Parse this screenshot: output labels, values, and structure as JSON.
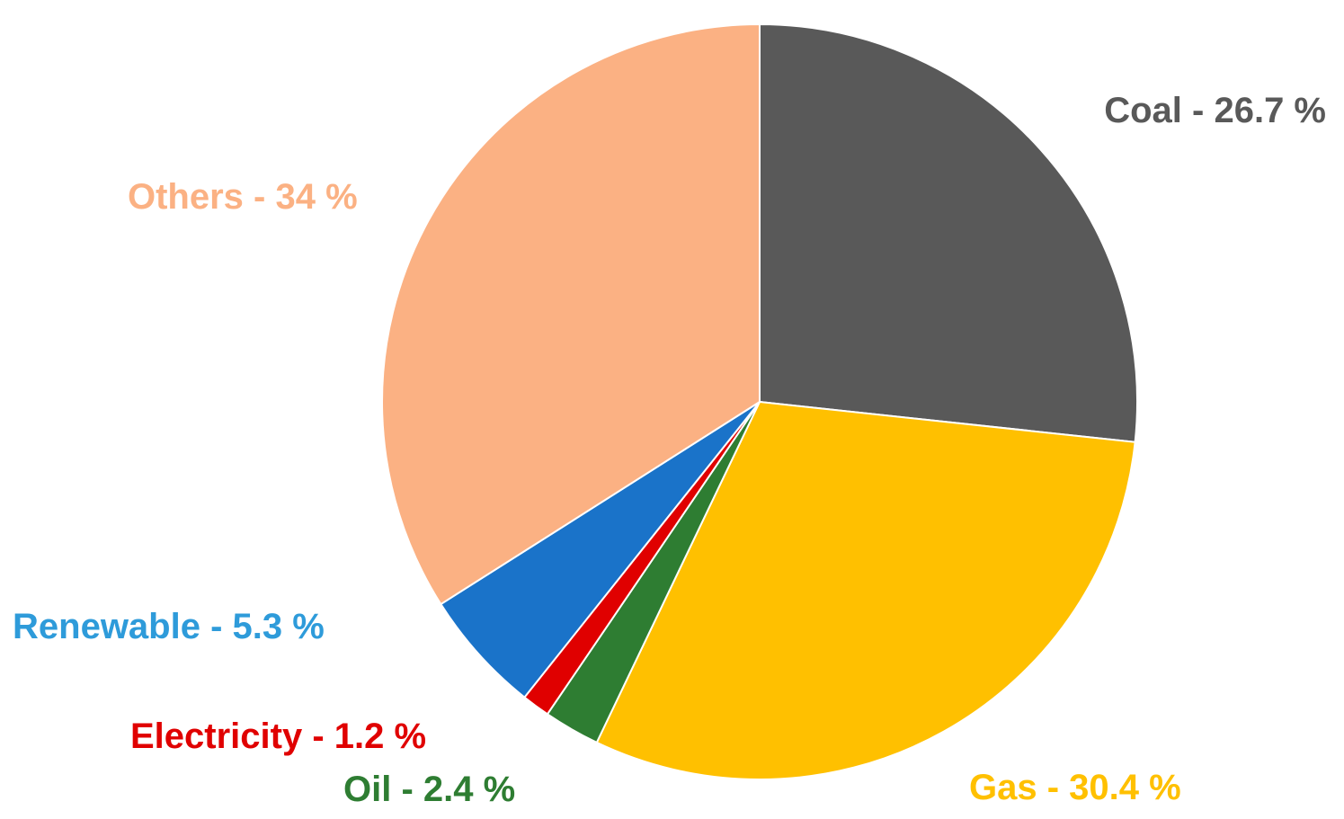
{
  "chart_data": {
    "type": "pie",
    "title": "",
    "slices": [
      {
        "label": "Coal - 26.7 %",
        "name": "Coal",
        "value": 26.7,
        "color": "#595959",
        "label_color": "#595959"
      },
      {
        "label": "Gas -  30.4 %",
        "name": "Gas",
        "value": 30.4,
        "color": "#FFC000",
        "label_color": "#FFC000"
      },
      {
        "label": "Oil -  2.4 %",
        "name": "Oil",
        "value": 2.4,
        "color": "#2E7D32",
        "label_color": "#2E7D32"
      },
      {
        "label": "Electricity -  1.2 %",
        "name": "Electricity",
        "value": 1.2,
        "color": "#E00000",
        "label_color": "#E00000"
      },
      {
        "label": "Renewable - 5.3 %",
        "name": "Renewable",
        "value": 5.3,
        "color": "#1A73C9",
        "label_color": "#2E9BDA"
      },
      {
        "label": "Others - 34 %",
        "name": "Others",
        "value": 34,
        "color": "#FBB183",
        "label_color": "#FBB183"
      }
    ],
    "start_angle": "12 o'clock",
    "direction": "clockwise",
    "legend": "none"
  }
}
